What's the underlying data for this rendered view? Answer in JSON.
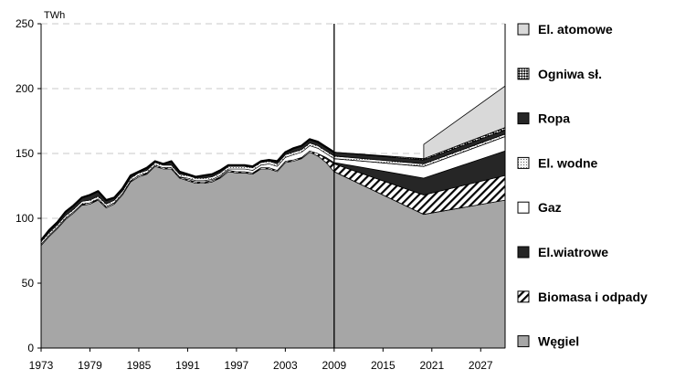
{
  "chart_data": {
    "type": "area",
    "ylabel": "TWh",
    "ylim": [
      0,
      250
    ],
    "yticks": [
      0,
      50,
      100,
      150,
      200,
      250
    ],
    "xlim": [
      1973,
      2030
    ],
    "xticks": [
      1973,
      1979,
      1985,
      1991,
      1997,
      2003,
      2009,
      2015,
      2021,
      2027
    ],
    "grid": "horizontal dashed",
    "legend_position": "right",
    "divider_year": 2009,
    "colors": {
      "wegiel": "#a6a6a6",
      "biomasa": "#ffffff",
      "wiatr": "#262626",
      "gaz": "#ffffff",
      "wodne": "#f0f0f0",
      "ropa": "#262626",
      "ogniwa": "#ffffff",
      "atom": "#d9d9d9",
      "stroke": "#000000"
    },
    "legend": [
      {
        "key": "atom",
        "label": "El. atomowe"
      },
      {
        "key": "ogniwa",
        "label": "Ogniwa sł."
      },
      {
        "key": "ropa",
        "label": "Ropa"
      },
      {
        "key": "wodne",
        "label": "El. wodne"
      },
      {
        "key": "gaz",
        "label": "Gaz"
      },
      {
        "key": "wiatr",
        "label": "El.wiatrowe"
      },
      {
        "key": "biomasa",
        "label": "Biomasa i odpady"
      },
      {
        "key": "wegiel",
        "label": "Węgiel"
      }
    ],
    "history": {
      "years": [
        1973,
        1974,
        1975,
        1976,
        1977,
        1978,
        1979,
        1980,
        1981,
        1982,
        1983,
        1984,
        1985,
        1986,
        1987,
        1988,
        1989,
        1990,
        1991,
        1992,
        1993,
        1994,
        1995,
        1996,
        1997,
        1998,
        1999,
        2000,
        2001,
        2002,
        2003,
        2004,
        2005,
        2006,
        2007,
        2008,
        2009
      ],
      "total": [
        83,
        91,
        97,
        105,
        110,
        116,
        118,
        121,
        114,
        116,
        123,
        133,
        136,
        139,
        144,
        142,
        144,
        136,
        134,
        132,
        133,
        134,
        137,
        141,
        141,
        141,
        140,
        144,
        145,
        144,
        151,
        154,
        156,
        161,
        159,
        155,
        151
      ],
      "wegiel": [
        79,
        86,
        92,
        99,
        104,
        110,
        111,
        114,
        108,
        111,
        118,
        128,
        132,
        134,
        140,
        138,
        138,
        131,
        129,
        127,
        127,
        128,
        131,
        136,
        135,
        135,
        134,
        138,
        138,
        136,
        143,
        144,
        146,
        151,
        148,
        143,
        136
      ],
      "biomasa": [
        1,
        1,
        1,
        1,
        1,
        1,
        1,
        1,
        1,
        1,
        1,
        1,
        1,
        1,
        1,
        1,
        1,
        1,
        1,
        1,
        1,
        1,
        1,
        1,
        1,
        1,
        1,
        1,
        1,
        1,
        1,
        1,
        1,
        1,
        2,
        3,
        6
      ],
      "wiatr": [
        0,
        0,
        0,
        0,
        0,
        0,
        0,
        0,
        0,
        0,
        0,
        0,
        0,
        0,
        0,
        0,
        0,
        0,
        0,
        0,
        0,
        0,
        0,
        0,
        0,
        0,
        0,
        0,
        0,
        0,
        0,
        0,
        0,
        0,
        0,
        1,
        1
      ],
      "gaz": [
        0,
        0,
        0,
        0,
        0,
        0,
        0,
        0,
        0,
        0,
        0,
        0,
        0,
        0,
        0,
        0,
        0,
        0,
        1,
        1,
        1,
        1,
        1,
        1,
        2,
        2,
        2,
        2,
        3,
        3,
        3,
        4,
        4,
        4,
        4,
        3,
        3
      ],
      "wodne": [
        2,
        2,
        2,
        2,
        2,
        2,
        2,
        2,
        2,
        2,
        2,
        2,
        2,
        2,
        2,
        2,
        2,
        2,
        2,
        2,
        2,
        2,
        2,
        2,
        2,
        2,
        2,
        2,
        2,
        2,
        2,
        2,
        2,
        2,
        2,
        2,
        2
      ],
      "ropa": [
        1,
        2,
        2,
        3,
        3,
        3,
        4,
        4,
        3,
        2,
        2,
        2,
        1,
        2,
        1,
        1,
        3,
        2,
        1,
        1,
        2,
        2,
        2,
        1,
        1,
        1,
        1,
        1,
        1,
        2,
        2,
        3,
        3,
        3,
        2,
        3,
        3
      ]
    },
    "forecast": {
      "years": [
        2009,
        2020,
        2030
      ],
      "wegiel": [
        136,
        103,
        114
      ],
      "biomasa": [
        6,
        15,
        19
      ],
      "wiatr": [
        1,
        13,
        19
      ],
      "gaz": [
        3,
        9,
        11
      ],
      "wodne": [
        2,
        2,
        2
      ],
      "ropa": [
        3,
        3,
        3
      ],
      "ogniwa": [
        0,
        1,
        2
      ],
      "atom": [
        0,
        0,
        32
      ],
      "atom_start": [
        2020,
        11
      ]
    }
  }
}
